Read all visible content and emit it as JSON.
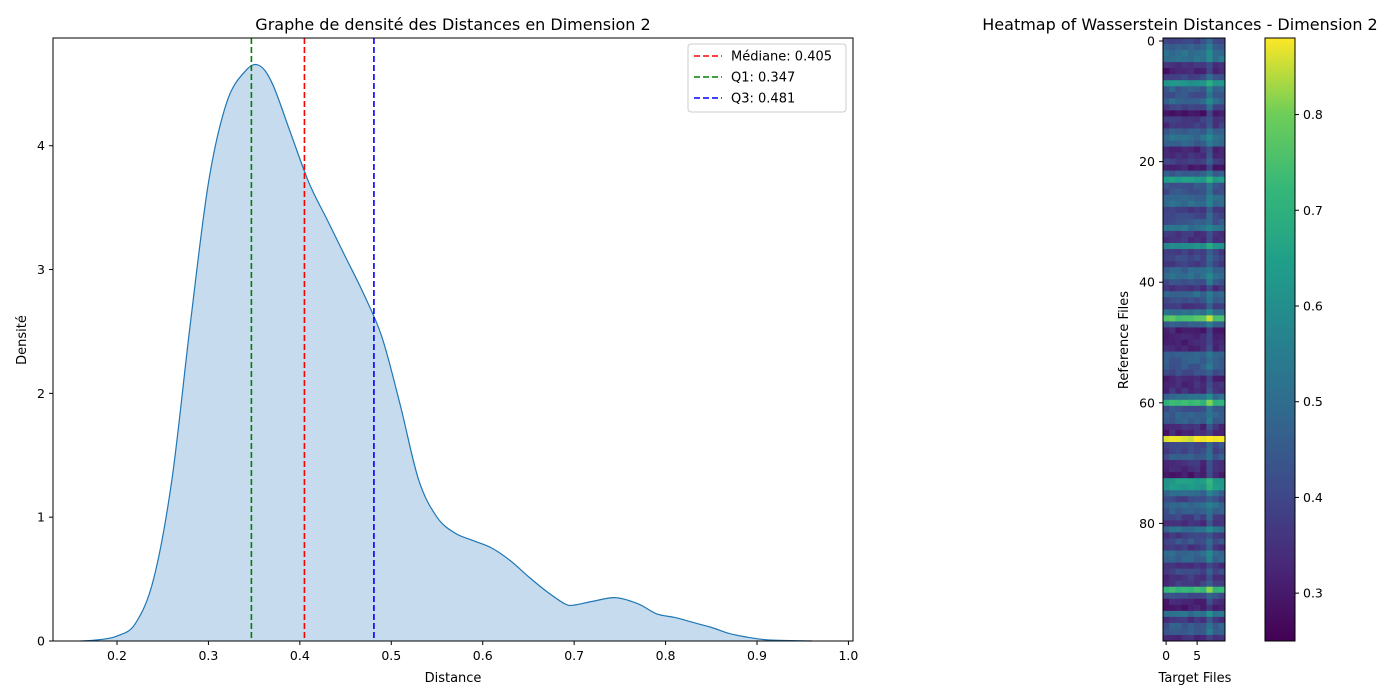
{
  "chart_data": [
    {
      "type": "area",
      "title": "Graphe de densité des Distances en Dimension 2",
      "xlabel": "Distance",
      "ylabel": "Densité",
      "xlim": [
        0.13,
        1.005
      ],
      "ylim": [
        0,
        4.87
      ],
      "xticks": [
        "0.2",
        "0.3",
        "0.4",
        "0.5",
        "0.6",
        "0.7",
        "0.8",
        "0.9",
        "1.0"
      ],
      "yticks": [
        "0",
        "1",
        "2",
        "3",
        "4"
      ],
      "legend_position": "top-right",
      "colors": {
        "fill": "#c6dbee",
        "line": "#1f77b4"
      },
      "series": [
        {
          "x": [
            0.16,
            0.18,
            0.2,
            0.22,
            0.24,
            0.26,
            0.28,
            0.3,
            0.32,
            0.34,
            0.355,
            0.37,
            0.39,
            0.41,
            0.43,
            0.45,
            0.47,
            0.49,
            0.51,
            0.53,
            0.55,
            0.57,
            0.59,
            0.61,
            0.63,
            0.65,
            0.67,
            0.69,
            0.7,
            0.72,
            0.745,
            0.77,
            0.79,
            0.81,
            0.83,
            0.85,
            0.87,
            0.89,
            0.91,
            0.93,
            0.96
          ],
          "y": [
            0.0,
            0.01,
            0.04,
            0.14,
            0.5,
            1.3,
            2.55,
            3.7,
            4.35,
            4.6,
            4.65,
            4.5,
            4.1,
            3.7,
            3.4,
            3.1,
            2.8,
            2.45,
            1.9,
            1.3,
            1.0,
            0.87,
            0.81,
            0.75,
            0.65,
            0.52,
            0.4,
            0.3,
            0.29,
            0.32,
            0.35,
            0.3,
            0.22,
            0.19,
            0.15,
            0.11,
            0.06,
            0.03,
            0.01,
            0.004,
            0.0
          ]
        }
      ],
      "reference_lines": [
        {
          "label": "Médiane: 0.405",
          "x": 0.405,
          "color": "#ff0000"
        },
        {
          "label": "Q1: 0.347",
          "x": 0.347,
          "color": "#008000"
        },
        {
          "label": "Q3: 0.481",
          "x": 0.481,
          "color": "#0000ff"
        }
      ]
    },
    {
      "type": "heatmap",
      "title": "Heatmap of Wasserstein Distances - Dimension 2",
      "xlabel": "Target Files",
      "ylabel": "Reference Files",
      "rows": 100,
      "cols": 10,
      "xticks": [
        "0",
        "5"
      ],
      "yticks": [
        "0",
        "20",
        "40",
        "60",
        "80"
      ],
      "colormap": "viridis",
      "colorbar": {
        "min": 0.25,
        "max": 0.88,
        "ticks": [
          "0.3",
          "0.4",
          "0.5",
          "0.6",
          "0.7",
          "0.8"
        ]
      },
      "highlight_rows": {
        "7": 0.62,
        "23": 0.64,
        "34": 0.6,
        "46": 0.76,
        "60": 0.72,
        "66": 0.87,
        "73": 0.64,
        "74": 0.63,
        "91": 0.72
      },
      "highlight_col": 7
    }
  ]
}
